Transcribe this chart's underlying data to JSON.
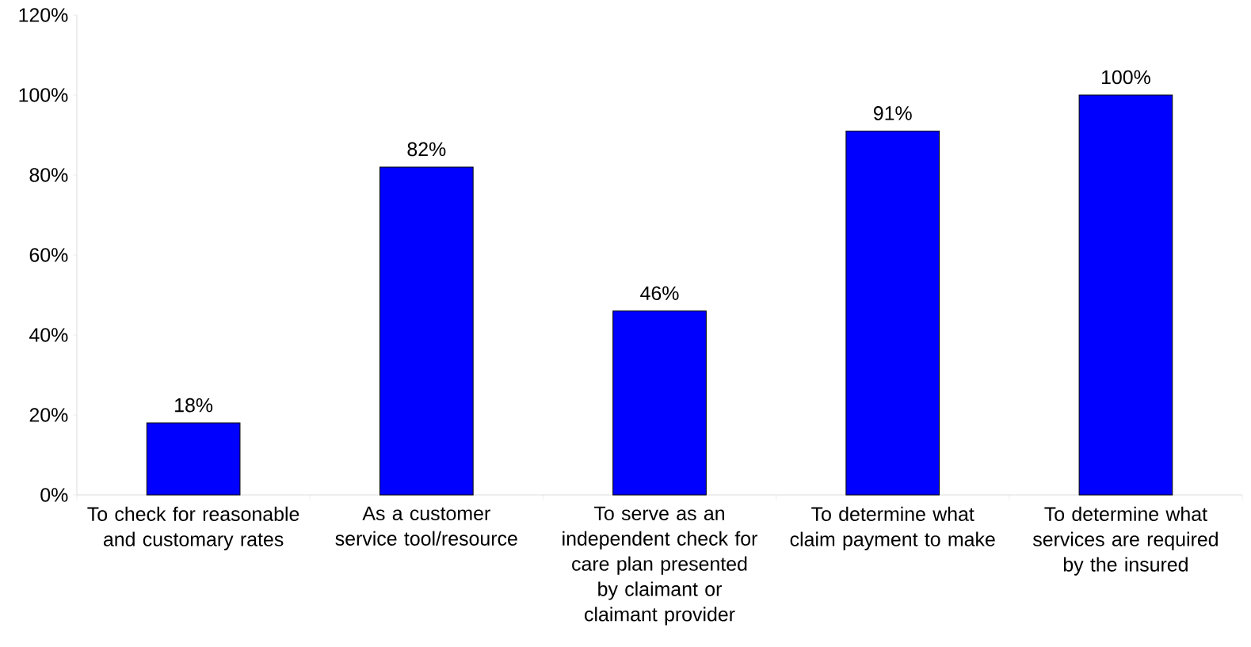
{
  "chart_data": {
    "type": "bar",
    "categories": [
      "To check for reasonable and customary rates",
      "As a customer service tool/resource",
      "To serve as an independent check for care plan presented by claimant or claimant provider",
      "To determine what claim payment to make",
      "To determine what services are required by the insured"
    ],
    "values": [
      18,
      82,
      46,
      91,
      100
    ],
    "value_labels": [
      "18%",
      "82%",
      "46%",
      "91%",
      "100%"
    ],
    "color": "#0000ff",
    "ylim": [
      0,
      120
    ],
    "yticks": [
      {
        "value": 0,
        "label": "0%"
      },
      {
        "value": 20,
        "label": "20%"
      },
      {
        "value": 40,
        "label": "40%"
      },
      {
        "value": 60,
        "label": "60%"
      },
      {
        "value": 80,
        "label": "80%"
      },
      {
        "value": 100,
        "label": "100%"
      },
      {
        "value": 120,
        "label": "120%"
      }
    ],
    "grid": false
  }
}
